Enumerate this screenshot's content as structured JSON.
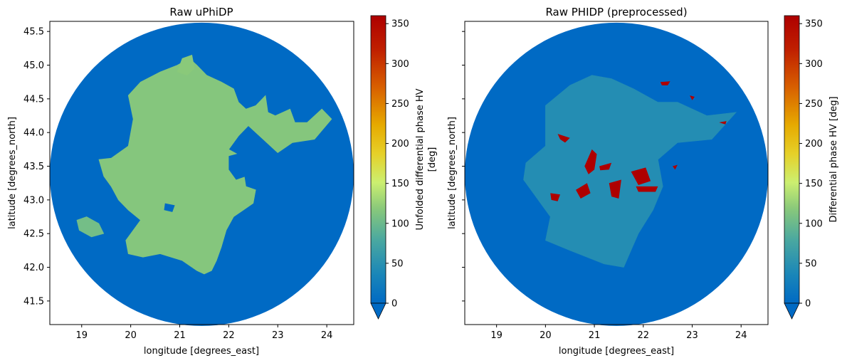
{
  "chart_data": [
    {
      "type": "heatmap",
      "title": "Raw uPhiDP",
      "xlabel": "longitude [degrees_east]",
      "ylabel": "latitude [degrees_north]",
      "xlim": [
        18.35,
        24.55
      ],
      "ylim": [
        41.15,
        45.65
      ],
      "x_ticks": [
        19,
        20,
        21,
        22,
        23,
        24
      ],
      "y_ticks": [
        41.5,
        42.0,
        42.5,
        43.0,
        43.5,
        44.0,
        44.5,
        45.0,
        45.5
      ],
      "x_tick_labels": [
        "19",
        "20",
        "21",
        "22",
        "23",
        "24"
      ],
      "y_tick_labels": [
        "41.5",
        "42.0",
        "42.5",
        "43.0",
        "43.5",
        "44.0",
        "44.5",
        "45.0",
        "45.5"
      ],
      "radar_center": [
        21.45,
        43.38
      ],
      "radar_range_deg": {
        "lon": 3.1,
        "lat": 2.25
      },
      "background_value": 0,
      "echo_regions": [
        {
          "name": "main-echo",
          "value": 115,
          "outline": [
            [
              19.35,
              43.6
            ],
            [
              19.6,
              43.62
            ],
            [
              19.95,
              43.8
            ],
            [
              20.05,
              44.2
            ],
            [
              19.95,
              44.55
            ],
            [
              20.2,
              44.75
            ],
            [
              20.6,
              44.9
            ],
            [
              20.95,
              45.0
            ],
            [
              21.2,
              45.1
            ],
            [
              21.35,
              45.0
            ],
            [
              21.55,
              44.85
            ],
            [
              21.85,
              44.75
            ],
            [
              22.1,
              44.65
            ],
            [
              22.2,
              44.45
            ],
            [
              22.35,
              44.35
            ],
            [
              22.55,
              44.4
            ],
            [
              22.75,
              44.55
            ],
            [
              22.8,
              44.3
            ],
            [
              22.95,
              44.25
            ],
            [
              23.25,
              44.35
            ],
            [
              23.35,
              44.15
            ],
            [
              23.6,
              44.15
            ],
            [
              23.9,
              44.35
            ],
            [
              24.1,
              44.2
            ],
            [
              23.75,
              43.9
            ],
            [
              23.3,
              43.85
            ],
            [
              23.0,
              43.7
            ],
            [
              22.7,
              43.9
            ],
            [
              22.4,
              44.1
            ],
            [
              22.2,
              43.95
            ],
            [
              22.0,
              43.75
            ],
            [
              22.25,
              43.65
            ],
            [
              22.35,
              43.2
            ],
            [
              22.55,
              43.15
            ],
            [
              22.5,
              42.95
            ],
            [
              22.3,
              42.85
            ],
            [
              22.1,
              42.75
            ],
            [
              21.95,
              42.55
            ],
            [
              21.85,
              42.3
            ],
            [
              21.75,
              42.1
            ],
            [
              21.65,
              41.95
            ],
            [
              21.5,
              41.9
            ],
            [
              21.35,
              41.95
            ],
            [
              21.05,
              42.1
            ],
            [
              20.6,
              42.2
            ],
            [
              20.25,
              42.15
            ],
            [
              19.95,
              42.2
            ],
            [
              19.9,
              42.4
            ],
            [
              20.2,
              42.7
            ],
            [
              19.95,
              42.85
            ],
            [
              19.75,
              43.0
            ],
            [
              19.6,
              43.2
            ],
            [
              19.45,
              43.35
            ]
          ]
        },
        {
          "name": "west-fragment",
          "value": 105,
          "outline": [
            [
              18.9,
              42.7
            ],
            [
              19.1,
              42.75
            ],
            [
              19.35,
              42.65
            ],
            [
              19.45,
              42.5
            ],
            [
              19.2,
              42.45
            ],
            [
              18.95,
              42.55
            ]
          ]
        },
        {
          "name": "north-plume",
          "value": 118,
          "outline": [
            [
              20.95,
              44.9
            ],
            [
              21.05,
              45.1
            ],
            [
              21.25,
              45.15
            ],
            [
              21.3,
              44.95
            ],
            [
              21.15,
              44.85
            ]
          ]
        }
      ],
      "hole_regions": [
        {
          "outline": [
            [
              20.7,
              42.95
            ],
            [
              20.9,
              42.92
            ],
            [
              20.85,
              42.82
            ],
            [
              20.68,
              42.85
            ]
          ]
        },
        {
          "outline": [
            [
              22.0,
              43.65
            ],
            [
              22.25,
              43.7
            ],
            [
              22.35,
              43.35
            ],
            [
              22.15,
              43.3
            ],
            [
              22.0,
              43.45
            ]
          ]
        }
      ],
      "colorbar": {
        "label": "Unfolded differential phase HV\n[deg]",
        "min": 0,
        "max": 360,
        "ticks": [
          0,
          50,
          100,
          150,
          200,
          250,
          300,
          350
        ],
        "extend": "min"
      }
    },
    {
      "type": "heatmap",
      "title": "Raw PHIDP (preprocessed)",
      "xlabel": "longitude [degrees_east]",
      "ylabel": "latitude [degrees_north]",
      "xlim": [
        18.35,
        24.55
      ],
      "ylim": [
        41.15,
        45.65
      ],
      "x_ticks": [
        19,
        20,
        21,
        22,
        23,
        24
      ],
      "y_ticks": [
        41.5,
        42.0,
        42.5,
        43.0,
        43.5,
        44.0,
        44.5,
        45.0,
        45.5
      ],
      "x_tick_labels": [
        "19",
        "20",
        "21",
        "22",
        "23",
        "24"
      ],
      "y_tick_labels": [],
      "radar_center": [
        21.45,
        43.38
      ],
      "radar_range_deg": {
        "lon": 3.1,
        "lat": 2.25
      },
      "background_value": 0,
      "echo_regions": [
        {
          "name": "faint-echo",
          "value": 45,
          "outline": [
            [
              19.6,
              43.55
            ],
            [
              20.0,
              43.8
            ],
            [
              20.0,
              44.4
            ],
            [
              20.5,
              44.7
            ],
            [
              20.95,
              44.85
            ],
            [
              21.35,
              44.8
            ],
            [
              21.8,
              44.65
            ],
            [
              22.3,
              44.45
            ],
            [
              22.7,
              44.45
            ],
            [
              23.3,
              44.25
            ],
            [
              23.9,
              44.3
            ],
            [
              23.4,
              43.9
            ],
            [
              22.7,
              43.85
            ],
            [
              22.3,
              43.6
            ],
            [
              22.4,
              43.2
            ],
            [
              22.2,
              42.85
            ],
            [
              21.9,
              42.5
            ],
            [
              21.6,
              42.0
            ],
            [
              21.2,
              42.05
            ],
            [
              20.5,
              42.25
            ],
            [
              20.0,
              42.4
            ],
            [
              20.1,
              42.75
            ],
            [
              19.8,
              43.05
            ],
            [
              19.55,
              43.3
            ]
          ]
        }
      ],
      "hot_spots": [
        {
          "value": 360,
          "outline": [
            [
              20.8,
              43.5
            ],
            [
              20.95,
              43.75
            ],
            [
              21.05,
              43.68
            ],
            [
              21.0,
              43.45
            ],
            [
              20.88,
              43.38
            ]
          ]
        },
        {
          "value": 360,
          "outline": [
            [
              20.62,
              43.15
            ],
            [
              20.85,
              43.25
            ],
            [
              20.92,
              43.1
            ],
            [
              20.72,
              43.02
            ]
          ]
        },
        {
          "value": 360,
          "outline": [
            [
              21.3,
              43.25
            ],
            [
              21.55,
              43.3
            ],
            [
              21.5,
              43.02
            ],
            [
              21.35,
              43.05
            ]
          ]
        },
        {
          "value": 360,
          "outline": [
            [
              21.75,
              43.42
            ],
            [
              22.05,
              43.48
            ],
            [
              22.15,
              43.28
            ],
            [
              21.9,
              43.22
            ]
          ]
        },
        {
          "value": 360,
          "outline": [
            [
              21.85,
              43.2
            ],
            [
              22.3,
              43.2
            ],
            [
              22.25,
              43.12
            ],
            [
              21.9,
              43.12
            ]
          ]
        },
        {
          "value": 360,
          "outline": [
            [
              20.25,
              43.98
            ],
            [
              20.5,
              43.92
            ],
            [
              20.4,
              43.85
            ],
            [
              20.3,
              43.9
            ]
          ]
        },
        {
          "value": 360,
          "outline": [
            [
              20.1,
              43.1
            ],
            [
              20.3,
              43.08
            ],
            [
              20.25,
              42.98
            ],
            [
              20.12,
              43.0
            ]
          ]
        },
        {
          "value": 360,
          "outline": [
            [
              21.1,
              43.5
            ],
            [
              21.35,
              43.55
            ],
            [
              21.3,
              43.45
            ],
            [
              21.12,
              43.44
            ]
          ]
        },
        {
          "value": 360,
          "outline": [
            [
              22.35,
              44.75
            ],
            [
              22.55,
              44.76
            ],
            [
              22.5,
              44.7
            ],
            [
              22.38,
              44.7
            ]
          ]
        },
        {
          "value": 360,
          "outline": [
            [
              22.95,
              44.55
            ],
            [
              23.05,
              44.53
            ],
            [
              23.0,
              44.48
            ]
          ]
        },
        {
          "value": 360,
          "outline": [
            [
              23.55,
              44.15
            ],
            [
              23.7,
              44.17
            ],
            [
              23.68,
              44.12
            ]
          ]
        },
        {
          "value": 360,
          "outline": [
            [
              22.6,
              43.5
            ],
            [
              22.7,
              43.52
            ],
            [
              22.65,
              43.45
            ]
          ]
        }
      ],
      "colorbar": {
        "label": "Differential phase HV [deg]",
        "min": 0,
        "max": 360,
        "ticks": [
          0,
          50,
          100,
          150,
          200,
          250,
          300,
          350
        ],
        "extend": "min"
      }
    }
  ]
}
